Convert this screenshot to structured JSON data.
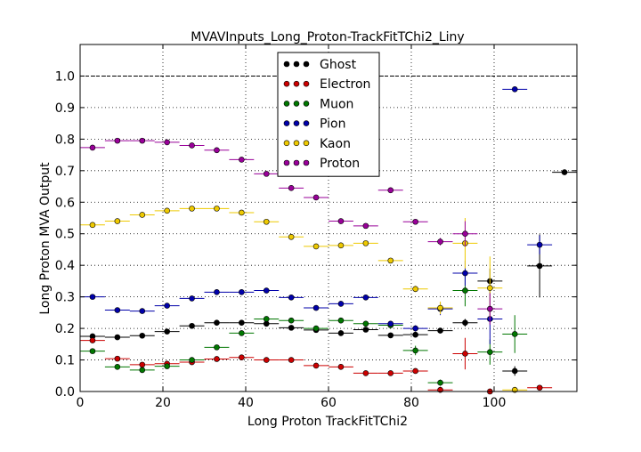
{
  "chart_data": {
    "type": "scatter",
    "title": "MVAVInputs_Long_Proton-TrackFitTChi2_Liny",
    "xlabel": "Long Proton TrackFitTChi2",
    "ylabel": "Long Proton MVA Output",
    "xlim": [
      0,
      120
    ],
    "ylim": [
      0.0,
      1.1
    ],
    "xticks": [
      "0",
      "20",
      "40",
      "60",
      "80",
      "100"
    ],
    "yticks": [
      "0.0",
      "0.1",
      "0.2",
      "0.3",
      "0.4",
      "0.5",
      "0.6",
      "0.7",
      "0.8",
      "0.9",
      "1.0"
    ],
    "grid": true,
    "reference_line": 1.0,
    "legend_position": "top-center",
    "x_bin_half_width": 3,
    "series": [
      {
        "name": "Ghost",
        "color": "#000000",
        "points": [
          [
            3,
            0.175
          ],
          [
            9,
            0.172
          ],
          [
            15,
            0.177
          ],
          [
            21,
            0.19
          ],
          [
            27,
            0.208
          ],
          [
            33,
            0.218
          ],
          [
            39,
            0.218
          ],
          [
            45,
            0.215
          ],
          [
            51,
            0.202
          ],
          [
            57,
            0.195
          ],
          [
            63,
            0.185
          ],
          [
            69,
            0.196
          ],
          [
            75,
            0.178
          ],
          [
            81,
            0.18
          ],
          [
            87,
            0.193
          ],
          [
            93,
            0.218
          ],
          [
            99,
            0.35
          ],
          [
            105,
            0.065
          ],
          [
            111,
            0.398
          ],
          [
            117,
            0.695
          ]
        ],
        "yerr": [
          0.005,
          0.004,
          0.004,
          0.004,
          0.004,
          0.004,
          0.004,
          0.004,
          0.004,
          0.004,
          0.004,
          0.005,
          0.006,
          0.008,
          0.008,
          0.012,
          0.04,
          0.015,
          0.1,
          0.005
        ]
      },
      {
        "name": "Electron",
        "color": "#cc0000",
        "points": [
          [
            3,
            0.162
          ],
          [
            9,
            0.104
          ],
          [
            15,
            0.085
          ],
          [
            21,
            0.088
          ],
          [
            27,
            0.093
          ],
          [
            33,
            0.103
          ],
          [
            39,
            0.108
          ],
          [
            45,
            0.1
          ],
          [
            51,
            0.1
          ],
          [
            57,
            0.082
          ],
          [
            63,
            0.078
          ],
          [
            69,
            0.058
          ],
          [
            75,
            0.058
          ],
          [
            81,
            0.065
          ],
          [
            87,
            0.005
          ],
          [
            93,
            0.12
          ],
          [
            99,
            0.0
          ],
          [
            111,
            0.012
          ]
        ],
        "yerr": [
          0.008,
          0.006,
          0.005,
          0.005,
          0.005,
          0.005,
          0.005,
          0.005,
          0.006,
          0.006,
          0.006,
          0.006,
          0.006,
          0.008,
          0.01,
          0.05,
          0.01,
          0.005
        ]
      },
      {
        "name": "Muon",
        "color": "#007700",
        "points": [
          [
            3,
            0.128
          ],
          [
            9,
            0.078
          ],
          [
            15,
            0.068
          ],
          [
            21,
            0.08
          ],
          [
            27,
            0.1
          ],
          [
            33,
            0.14
          ],
          [
            39,
            0.185
          ],
          [
            45,
            0.23
          ],
          [
            51,
            0.225
          ],
          [
            57,
            0.2
          ],
          [
            63,
            0.225
          ],
          [
            69,
            0.215
          ],
          [
            75,
            0.21
          ],
          [
            81,
            0.13
          ],
          [
            87,
            0.028
          ],
          [
            93,
            0.32
          ],
          [
            99,
            0.125
          ],
          [
            105,
            0.182
          ]
        ],
        "yerr": [
          0.006,
          0.005,
          0.005,
          0.005,
          0.005,
          0.006,
          0.007,
          0.007,
          0.007,
          0.007,
          0.007,
          0.008,
          0.008,
          0.015,
          0.01,
          0.05,
          0.04,
          0.06
        ]
      },
      {
        "name": "Pion",
        "color": "#0000aa",
        "points": [
          [
            3,
            0.3
          ],
          [
            9,
            0.258
          ],
          [
            15,
            0.255
          ],
          [
            21,
            0.272
          ],
          [
            27,
            0.295
          ],
          [
            33,
            0.315
          ],
          [
            39,
            0.315
          ],
          [
            45,
            0.32
          ],
          [
            51,
            0.298
          ],
          [
            57,
            0.265
          ],
          [
            63,
            0.278
          ],
          [
            69,
            0.298
          ],
          [
            75,
            0.215
          ],
          [
            81,
            0.2
          ],
          [
            87,
            0.262
          ],
          [
            93,
            0.375
          ],
          [
            99,
            0.23
          ],
          [
            105,
            0.958
          ],
          [
            111,
            0.465
          ]
        ],
        "yerr": [
          0.005,
          0.004,
          0.004,
          0.004,
          0.004,
          0.004,
          0.004,
          0.004,
          0.004,
          0.005,
          0.005,
          0.006,
          0.008,
          0.01,
          0.02,
          0.04,
          0.08,
          0.003,
          0.03
        ]
      },
      {
        "name": "Kaon",
        "color": "#eec900",
        "points": [
          [
            3,
            0.528
          ],
          [
            9,
            0.54
          ],
          [
            15,
            0.56
          ],
          [
            21,
            0.573
          ],
          [
            27,
            0.58
          ],
          [
            33,
            0.58
          ],
          [
            39,
            0.567
          ],
          [
            45,
            0.538
          ],
          [
            51,
            0.49
          ],
          [
            57,
            0.46
          ],
          [
            63,
            0.463
          ],
          [
            69,
            0.47
          ],
          [
            75,
            0.415
          ],
          [
            81,
            0.325
          ],
          [
            87,
            0.265
          ],
          [
            93,
            0.47
          ],
          [
            99,
            0.328
          ],
          [
            105,
            0.005
          ]
        ],
        "yerr": [
          0.005,
          0.004,
          0.004,
          0.004,
          0.004,
          0.004,
          0.004,
          0.004,
          0.005,
          0.005,
          0.006,
          0.006,
          0.008,
          0.01,
          0.02,
          0.08,
          0.1,
          0.01
        ]
      },
      {
        "name": "Proton",
        "color": "#990099",
        "points": [
          [
            3,
            0.773
          ],
          [
            9,
            0.795
          ],
          [
            15,
            0.795
          ],
          [
            21,
            0.79
          ],
          [
            27,
            0.78
          ],
          [
            33,
            0.765
          ],
          [
            39,
            0.735
          ],
          [
            45,
            0.69
          ],
          [
            51,
            0.645
          ],
          [
            57,
            0.615
          ],
          [
            63,
            0.54
          ],
          [
            69,
            0.525
          ],
          [
            75,
            0.638
          ],
          [
            81,
            0.538
          ],
          [
            87,
            0.475
          ],
          [
            93,
            0.5
          ],
          [
            99,
            0.262
          ]
        ],
        "yerr": [
          0.004,
          0.003,
          0.003,
          0.003,
          0.003,
          0.003,
          0.004,
          0.004,
          0.005,
          0.005,
          0.006,
          0.006,
          0.006,
          0.008,
          0.012,
          0.04,
          0.05
        ]
      }
    ]
  }
}
